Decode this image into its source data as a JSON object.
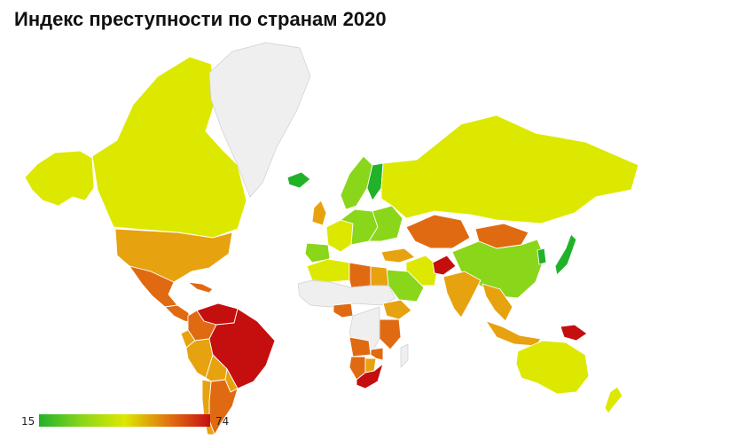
{
  "title": "Индекс преступности по странам 2020",
  "legend": {
    "min": "15",
    "max": "74"
  },
  "colors": {
    "low": "#22b22a",
    "lowmid": "#8ad61a",
    "mid": "#dde800",
    "midhigh": "#e7a20f",
    "high": "#e06a12",
    "veryhigh": "#c50f0f",
    "nodata": "#efefef"
  },
  "regions": [
    {
      "name": "Alaska",
      "level": "mid"
    },
    {
      "name": "Canada",
      "level": "mid"
    },
    {
      "name": "Greenland",
      "level": "nodata"
    },
    {
      "name": "United States",
      "level": "midhigh"
    },
    {
      "name": "Mexico",
      "level": "high"
    },
    {
      "name": "Central America",
      "level": "high"
    },
    {
      "name": "Caribbean",
      "level": "high"
    },
    {
      "name": "Venezuela",
      "level": "veryhigh"
    },
    {
      "name": "Colombia",
      "level": "high"
    },
    {
      "name": "Ecuador",
      "level": "midhigh"
    },
    {
      "name": "Peru",
      "level": "midhigh"
    },
    {
      "name": "Brazil",
      "level": "veryhigh"
    },
    {
      "name": "Bolivia",
      "level": "midhigh"
    },
    {
      "name": "Paraguay",
      "level": "midhigh"
    },
    {
      "name": "Argentina",
      "level": "high"
    },
    {
      "name": "Chile",
      "level": "midhigh"
    },
    {
      "name": "Iceland",
      "level": "low"
    },
    {
      "name": "Scandinavia",
      "level": "lowmid"
    },
    {
      "name": "Finland",
      "level": "low"
    },
    {
      "name": "United Kingdom",
      "level": "midhigh"
    },
    {
      "name": "Western Europe",
      "level": "mid"
    },
    {
      "name": "Central Europe",
      "level": "lowmid"
    },
    {
      "name": "Eastern Europe",
      "level": "lowmid"
    },
    {
      "name": "Iberia",
      "level": "lowmid"
    },
    {
      "name": "Russia",
      "level": "mid"
    },
    {
      "name": "Kazakhstan",
      "level": "high"
    },
    {
      "name": "Mongolia",
      "level": "high"
    },
    {
      "name": "China",
      "level": "lowmid"
    },
    {
      "name": "Japan",
      "level": "low"
    },
    {
      "name": "Korea",
      "level": "low"
    },
    {
      "name": "Afghanistan",
      "level": "veryhigh"
    },
    {
      "name": "Iran",
      "level": "mid"
    },
    {
      "name": "Turkey",
      "level": "midhigh"
    },
    {
      "name": "Saudi Arabia",
      "level": "lowmid"
    },
    {
      "name": "India",
      "level": "midhigh"
    },
    {
      "name": "Southeast Asia",
      "level": "midhigh"
    },
    {
      "name": "Indonesia",
      "level": "midhigh"
    },
    {
      "name": "Papua New Guinea",
      "level": "veryhigh"
    },
    {
      "name": "Australia",
      "level": "mid"
    },
    {
      "name": "New Zealand",
      "level": "mid"
    },
    {
      "name": "North Africa",
      "level": "mid"
    },
    {
      "name": "Libya",
      "level": "high"
    },
    {
      "name": "Egypt",
      "level": "midhigh"
    },
    {
      "name": "Sahel & West Africa",
      "level": "nodata"
    },
    {
      "name": "Nigeria",
      "level": "high"
    },
    {
      "name": "Ethiopia",
      "level": "midhigh"
    },
    {
      "name": "Kenya",
      "level": "high"
    },
    {
      "name": "Central Africa",
      "level": "nodata"
    },
    {
      "name": "Angola",
      "level": "high"
    },
    {
      "name": "Namibia",
      "level": "high"
    },
    {
      "name": "Botswana",
      "level": "midhigh"
    },
    {
      "name": "Zimbabwe",
      "level": "high"
    },
    {
      "name": "South Africa",
      "level": "veryhigh"
    },
    {
      "name": "Madagascar",
      "level": "nodata"
    }
  ]
}
